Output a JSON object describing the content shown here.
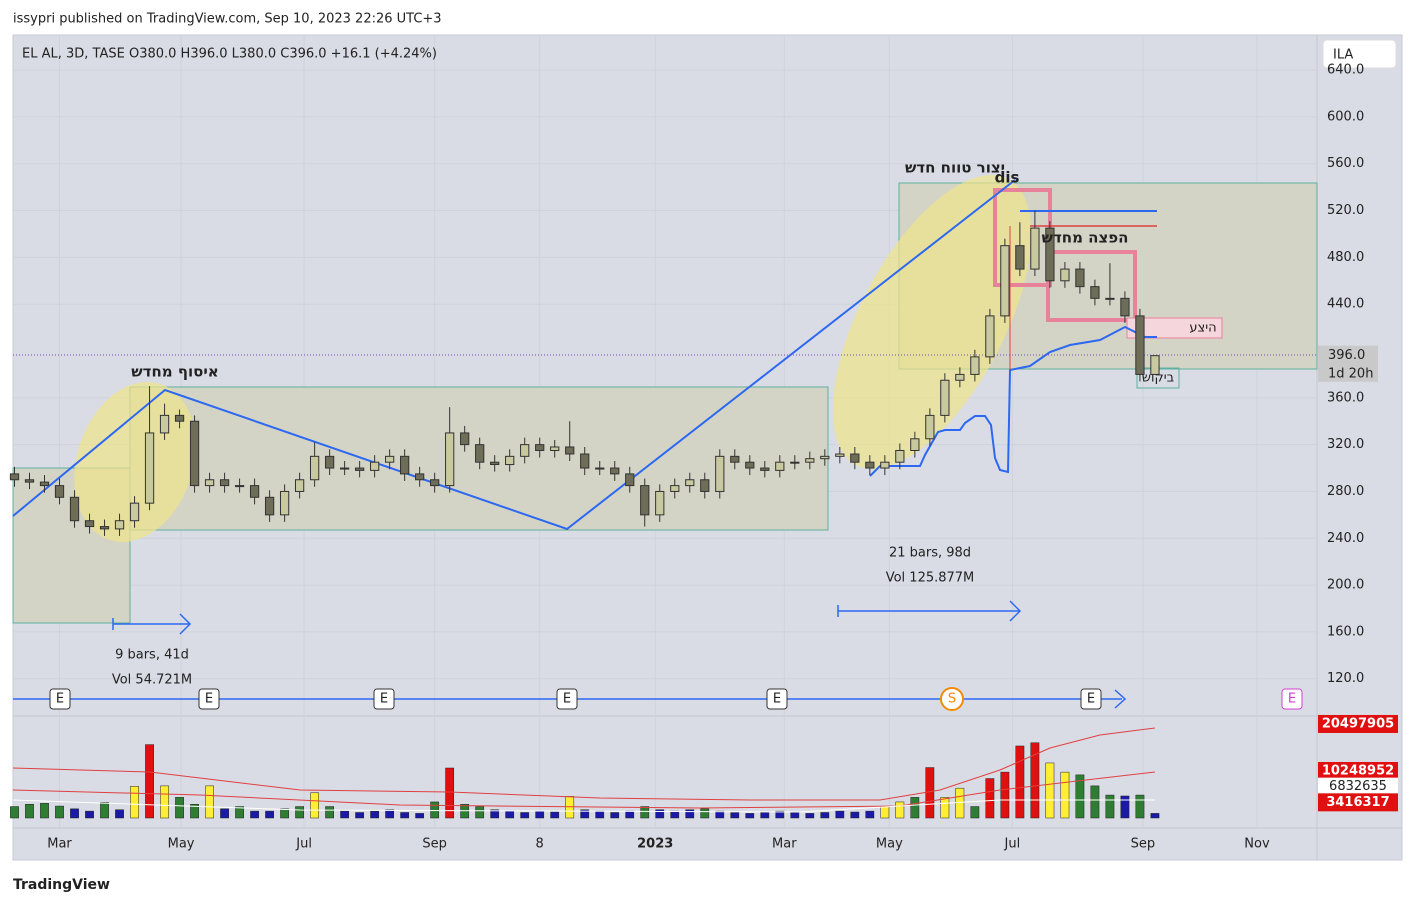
{
  "header": {
    "published": "issypri published on TradingView.com, Sep 10, 2023 22:26 UTC+3",
    "legend": "EL AL, 3D, TASE  O380.0  H396.0  L380.0  C396.0  +16.1 (+4.24%)",
    "currency": "ILA",
    "countdown": "1d 20h",
    "footer": "TradingView"
  },
  "annotations": {
    "reaccumulation": "איסוף מחדש",
    "new_range": "יצור טווח חדש",
    "dis": "dis",
    "redistribution": "הפצה מחדש",
    "supply": "היצע",
    "demand": "ביקוש",
    "range_left_bars": "9 bars, 41d",
    "range_left_vol": "Vol 54.721M",
    "range_right_bars": "21 bars, 98d",
    "range_right_vol": "Vol 125.877M",
    "events": [
      "E",
      "E",
      "E",
      "E",
      "E",
      "S",
      "E",
      "E"
    ]
  },
  "chart_data": {
    "type": "candlestick",
    "up_color": "#c9c9a0",
    "down_color": "#6e6e58",
    "wick_color": "#333333",
    "xlim": [
      -0.1,
      86.8
    ],
    "xticks": [
      {
        "value": 3,
        "label": "Mar"
      },
      {
        "value": 11.1,
        "label": "May"
      },
      {
        "value": 19.3,
        "label": "Jul"
      },
      {
        "value": 28,
        "label": "Sep"
      },
      {
        "value": 35,
        "label": "8"
      },
      {
        "value": 42.7,
        "label": "2023"
      },
      {
        "value": 51.3,
        "label": "Mar"
      },
      {
        "value": 58.3,
        "label": "May"
      },
      {
        "value": 66.5,
        "label": "Jul"
      },
      {
        "value": 75.2,
        "label": "Sep"
      },
      {
        "value": 82.8,
        "label": "Nov"
      }
    ],
    "ylim": [
      89,
      670
    ],
    "yticks": [
      {
        "value": 120,
        "label": "120.0"
      },
      {
        "value": 160,
        "label": "160.0"
      },
      {
        "value": 200,
        "label": "200.0"
      },
      {
        "value": 240,
        "label": "240.0"
      },
      {
        "value": 280,
        "label": "280.0"
      },
      {
        "value": 320,
        "label": "320.0"
      },
      {
        "value": 360,
        "label": "360.0"
      },
      {
        "value": 440,
        "label": "440.0"
      },
      {
        "value": 480,
        "label": "480.0"
      },
      {
        "value": 520,
        "label": "520.0"
      },
      {
        "value": 560,
        "label": "560.0"
      },
      {
        "value": 600,
        "label": "600.0"
      },
      {
        "value": 640,
        "label": "640.0"
      }
    ],
    "last_price": {
      "value": 396,
      "label": "396.0"
    },
    "open": [
      295,
      290,
      288,
      285,
      275,
      255,
      250,
      248,
      255,
      270,
      330,
      345,
      340,
      285,
      290,
      285,
      285,
      275,
      260,
      280,
      290,
      310,
      300,
      300,
      298,
      305,
      310,
      295,
      290,
      285,
      330,
      320,
      305,
      303,
      310,
      320,
      315,
      318,
      312,
      300,
      300,
      295,
      285,
      260,
      280,
      285,
      290,
      280,
      310,
      305,
      300,
      298,
      305,
      305,
      308,
      310,
      312,
      305,
      300,
      305,
      315,
      325,
      345,
      375,
      380,
      395,
      430,
      490,
      470,
      505,
      460,
      470,
      455,
      445,
      445,
      430,
      380
    ],
    "high": [
      301,
      296,
      294,
      291,
      281,
      261,
      256,
      261,
      276,
      370,
      355,
      350,
      345,
      296,
      296,
      291,
      291,
      281,
      286,
      296,
      322,
      316,
      306,
      306,
      311,
      316,
      316,
      301,
      296,
      352,
      336,
      326,
      311,
      316,
      326,
      326,
      324,
      340,
      318,
      306,
      306,
      301,
      291,
      286,
      291,
      296,
      296,
      316,
      316,
      311,
      306,
      311,
      311,
      314,
      316,
      318,
      318,
      311,
      311,
      321,
      331,
      351,
      381,
      386,
      401,
      436,
      496,
      510,
      520,
      511,
      476,
      476,
      461,
      475,
      451,
      436,
      396
    ],
    "low": [
      284,
      282,
      279,
      269,
      249,
      244,
      242,
      242,
      249,
      264,
      324,
      334,
      279,
      279,
      279,
      279,
      269,
      254,
      254,
      274,
      284,
      294,
      294,
      292,
      292,
      299,
      289,
      284,
      279,
      279,
      314,
      299,
      297,
      297,
      304,
      309,
      309,
      306,
      294,
      294,
      289,
      279,
      250,
      254,
      274,
      279,
      274,
      274,
      299,
      294,
      292,
      292,
      299,
      299,
      302,
      304,
      299,
      294,
      294,
      299,
      309,
      319,
      339,
      369,
      374,
      389,
      424,
      464,
      464,
      454,
      454,
      449,
      439,
      439,
      424,
      374,
      380
    ],
    "close": [
      290,
      288,
      285,
      275,
      255,
      250,
      248,
      255,
      270,
      330,
      345,
      340,
      285,
      290,
      285,
      285,
      275,
      260,
      280,
      290,
      310,
      300,
      300,
      298,
      305,
      310,
      295,
      290,
      285,
      330,
      320,
      305,
      303,
      310,
      320,
      315,
      318,
      312,
      300,
      300,
      295,
      285,
      260,
      280,
      285,
      290,
      280,
      310,
      305,
      300,
      298,
      305,
      305,
      308,
      310,
      312,
      305,
      300,
      305,
      315,
      325,
      345,
      375,
      380,
      395,
      430,
      490,
      470,
      505,
      460,
      470,
      455,
      445,
      445,
      430,
      380,
      396
    ],
    "volume": {
      "ylim": [
        0,
        21800000
      ],
      "values": [
        2500000,
        3000000,
        3200000,
        2600000,
        2000000,
        1500000,
        3400000,
        1800000,
        6900000,
        16000000,
        7000000,
        4500000,
        3000000,
        7000000,
        2000000,
        2500000,
        1500000,
        1500000,
        2000000,
        2500000,
        5500000,
        2500000,
        1500000,
        1200000,
        1500000,
        1800000,
        1200000,
        1000000,
        3500000,
        10900000,
        3000000,
        2500000,
        1800000,
        1500000,
        1200000,
        1500000,
        1300000,
        4700000,
        1800000,
        1500000,
        1200000,
        1500000,
        2500000,
        1800000,
        1500000,
        1800000,
        2000000,
        1500000,
        1200000,
        1000000,
        1200000,
        1500000,
        1200000,
        1000000,
        1200000,
        1500000,
        1300000,
        1500000,
        2500000,
        3500000,
        4500000,
        11000000,
        4500000,
        6500000,
        2500000,
        8600000,
        10000000,
        15700000,
        16400000,
        12000000,
        10000000,
        9400000,
        7000000,
        5000000,
        4800000,
        5000000,
        1000000
      ],
      "colors": [
        "#2e7d32",
        "#2e7d32",
        "#2e7d32",
        "#2e7d32",
        "#1a1aa6",
        "#1a1aa6",
        "#2e7d32",
        "#1a1aa6",
        "#ffee33",
        "#e01010",
        "#ffee33",
        "#2e7d32",
        "#2e7d32",
        "#ffee33",
        "#1a1aa6",
        "#2e7d32",
        "#1a1aa6",
        "#1a1aa6",
        "#2e7d32",
        "#2e7d32",
        "#ffee33",
        "#2e7d32",
        "#1a1aa6",
        "#1a1aa6",
        "#1a1aa6",
        "#1a1aa6",
        "#1a1aa6",
        "#1a1aa6",
        "#2e7d32",
        "#e01010",
        "#2e7d32",
        "#2e7d32",
        "#1a1aa6",
        "#1a1aa6",
        "#1a1aa6",
        "#1a1aa6",
        "#1a1aa6",
        "#ffee33",
        "#1a1aa6",
        "#1a1aa6",
        "#1a1aa6",
        "#1a1aa6",
        "#2e7d32",
        "#1a1aa6",
        "#1a1aa6",
        "#1a1aa6",
        "#2e7d32",
        "#1a1aa6",
        "#1a1aa6",
        "#1a1aa6",
        "#1a1aa6",
        "#1a1aa6",
        "#1a1aa6",
        "#1a1aa6",
        "#1a1aa6",
        "#1a1aa6",
        "#1a1aa6",
        "#1a1aa6",
        "#ffee33",
        "#ffee33",
        "#2e7d32",
        "#e01010",
        "#ffee33",
        "#ffee33",
        "#2e7d32",
        "#e01010",
        "#e01010",
        "#e01010",
        "#e01010",
        "#ffee33",
        "#ffee33",
        "#2e7d32",
        "#2e7d32",
        "#2e7d32",
        "#1a1aa6",
        "#2e7d32",
        "#1a1aa6"
      ],
      "labels": [
        20497905,
        10248952,
        6832635,
        3416317
      ],
      "label_colors": [
        "#e01010",
        "#e01010",
        "#ffffff",
        "#e01010"
      ]
    }
  }
}
